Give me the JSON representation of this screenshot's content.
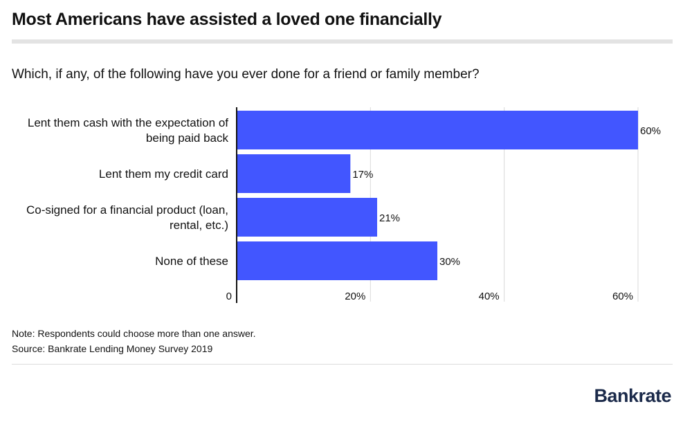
{
  "title": "Most Americans have assisted a loved one financially",
  "subtitle": "Which, if any, of the following have you ever done for a friend or family member?",
  "chart_data": {
    "type": "bar",
    "orientation": "horizontal",
    "title": "Most Americans have assisted a loved one financially",
    "subtitle": "Which, if any, of the following have you ever done for a friend or family member?",
    "categories": [
      [
        "Lent them cash with the expectation of",
        "being paid back"
      ],
      [
        "Lent them my credit card"
      ],
      [
        "Co-signed for a financial product (loan,",
        "rental, etc.)"
      ],
      [
        "None of these"
      ]
    ],
    "values": [
      60,
      17,
      21,
      30
    ],
    "value_labels": [
      "60%",
      "17%",
      "21%",
      "30%"
    ],
    "xlim": [
      0,
      60
    ],
    "xticks": [
      0,
      20,
      40,
      60
    ],
    "xtick_labels": [
      "0",
      "20%",
      "40%",
      "60%"
    ],
    "xlabel": "",
    "ylabel": "",
    "grid": true,
    "bar_color": "#4256ff"
  },
  "footer": {
    "note": "Note: Respondents could choose more than one answer.",
    "source": "Source: Bankrate Lending Money Survey 2019"
  },
  "brand": {
    "name": "Bankrate"
  }
}
